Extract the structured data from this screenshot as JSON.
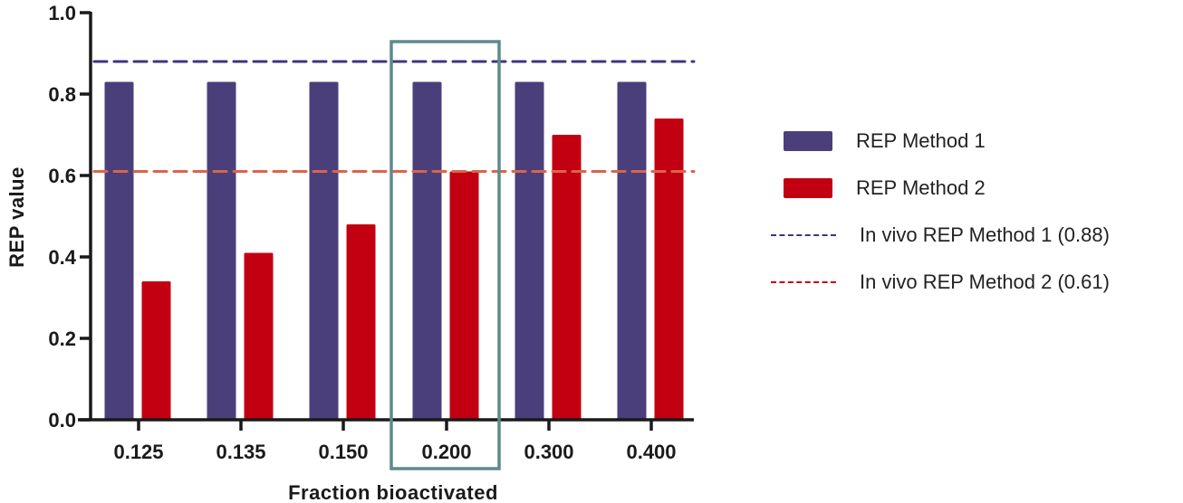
{
  "chart_data": {
    "type": "bar",
    "title": "",
    "xlabel": "Fraction bioactivated",
    "ylabel": "REP value",
    "ylim": [
      0,
      1.0
    ],
    "yticks": [
      "0.0",
      "0.2",
      "0.4",
      "0.6",
      "0.8",
      "1.0"
    ],
    "categories": [
      "0.125",
      "0.135",
      "0.150",
      "0.200",
      "0.300",
      "0.400"
    ],
    "series": [
      {
        "name": "REP Method 1",
        "color": "#4b3f7b",
        "values": [
          0.83,
          0.83,
          0.83,
          0.83,
          0.83,
          0.83
        ]
      },
      {
        "name": "REP Method 2",
        "color": "#c20012",
        "values": [
          0.34,
          0.41,
          0.48,
          0.61,
          0.7,
          0.74
        ]
      }
    ],
    "reference_lines": [
      {
        "name": "In vivo REP Method 1 (0.88)",
        "value": 0.88,
        "color": "#40357a",
        "style": "dashed"
      },
      {
        "name": "In vivo REP Method 2 (0.61)",
        "value": 0.61,
        "color": "#d9654a",
        "legend_color": "#c20012",
        "style": "dashed"
      }
    ],
    "highlight": {
      "category": "0.200",
      "color": "#5e8a8e",
      "shape": "rectangle"
    },
    "grid": false,
    "legend_position": "right"
  },
  "legend": {
    "items": [
      {
        "label": "REP Method 1",
        "type": "box",
        "color": "#4b3f7b"
      },
      {
        "label": "REP Method 2",
        "type": "box",
        "color": "#c20012"
      },
      {
        "label": "In vivo REP Method 1 (0.88)",
        "type": "dash",
        "color": "#40357a"
      },
      {
        "label": "In vivo REP Method 2 (0.61)",
        "type": "dash",
        "color": "#c20012"
      }
    ]
  }
}
